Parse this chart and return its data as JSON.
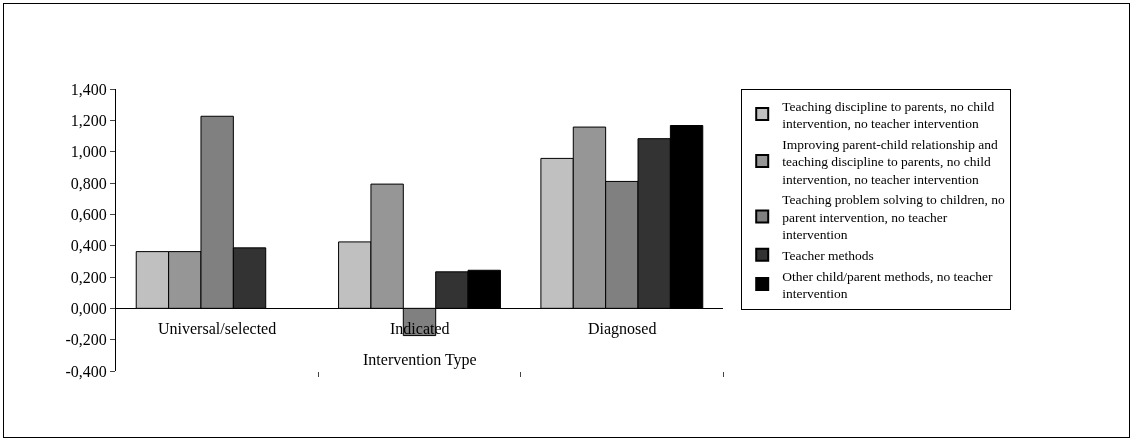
{
  "chart_data": {
    "type": "bar",
    "xlabel": "Intervention Type",
    "categories": [
      "Universal/selected",
      "Indicated",
      "Diagnosed"
    ],
    "series": [
      {
        "name": "Teaching discipline to parents, no child intervention, no teacher intervention",
        "color": "#c0c0c0",
        "values": [
          0.362,
          0.424,
          0.957
        ]
      },
      {
        "name": "Improving parent-child relationship and teaching discipline to parents, no child intervention, no teacher intervention",
        "color": "#969696",
        "values": [
          0.362,
          0.793,
          1.157
        ]
      },
      {
        "name": "Teaching problem solving to children, no parent intervention, no teacher intervention",
        "color": "#808080",
        "values": [
          1.226,
          -0.174,
          0.81
        ]
      },
      {
        "name": "Teacher methods",
        "color": "#333333",
        "values": [
          0.386,
          0.233,
          1.083
        ]
      },
      {
        "name": "Other child/parent methods, no teacher intervention",
        "color": "#000000",
        "values": [
          null,
          0.243,
          1.167
        ]
      }
    ],
    "ylim": [
      -0.4,
      1.4
    ],
    "yticks": [
      {
        "value": -0.4,
        "label": "-0,400"
      },
      {
        "value": -0.2,
        "label": "-0,200"
      },
      {
        "value": 0,
        "label": "0,000"
      },
      {
        "value": 0.2,
        "label": "0,200"
      },
      {
        "value": 0.4,
        "label": "0,400"
      },
      {
        "value": 0.6,
        "label": "0,600"
      },
      {
        "value": 0.8,
        "label": "0,800"
      },
      {
        "value": 1.0,
        "label": "1,000"
      },
      {
        "value": 1.2,
        "label": "1,200"
      },
      {
        "value": 1.4,
        "label": "1,400"
      }
    ],
    "grid": false,
    "legend": "right"
  }
}
